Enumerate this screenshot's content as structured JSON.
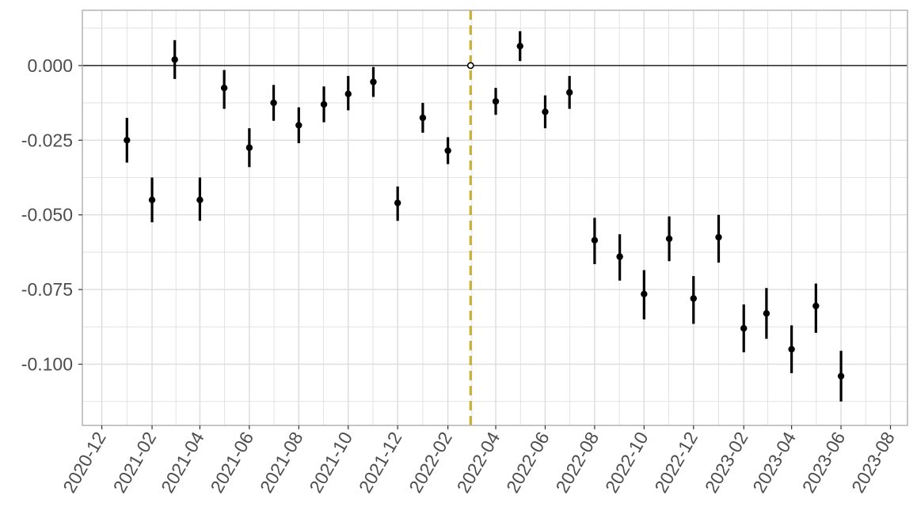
{
  "chart_data": {
    "type": "scatter",
    "title": "",
    "xlabel": "",
    "ylabel": "",
    "x_axis_type": "date",
    "xlim": [
      "2020-11-07",
      "2023-08-22"
    ],
    "ylim": [
      -0.1205,
      0.0185
    ],
    "x_tick_labels": [
      "2020-12",
      "2021-02",
      "2021-04",
      "2021-06",
      "2021-08",
      "2021-10",
      "2021-12",
      "2022-02",
      "2022-04",
      "2022-06",
      "2022-08",
      "2022-10",
      "2022-12",
      "2023-02",
      "2023-04",
      "2023-06",
      "2023-08"
    ],
    "y_ticks": [
      0.0,
      -0.025,
      -0.05,
      -0.075,
      -0.1
    ],
    "y_tick_labels": [
      "0.000",
      "-0.025",
      "-0.050",
      "-0.075",
      "-0.100"
    ],
    "x_label_rotation_deg": -60,
    "grid": true,
    "reference_hline_y": 0.0,
    "reference_vline_x": "2022-03-01",
    "colors": {
      "points": "#000000",
      "vline": "#c9b037",
      "hline": "#000000",
      "grid": "#dcdcdc",
      "panel_border": "#b3b3b3",
      "tick_text": "#4d4d4d"
    },
    "series": [
      {
        "points": [
          {
            "x": "2021-01-01",
            "y": -0.025,
            "lower": -0.0325,
            "upper": -0.0175
          },
          {
            "x": "2021-02-01",
            "y": -0.045,
            "lower": -0.0525,
            "upper": -0.0375
          },
          {
            "x": "2021-03-01",
            "y": 0.002,
            "lower": -0.0045,
            "upper": 0.0085
          },
          {
            "x": "2021-04-01",
            "y": -0.045,
            "lower": -0.052,
            "upper": -0.0375
          },
          {
            "x": "2021-05-01",
            "y": -0.0075,
            "lower": -0.0145,
            "upper": -0.0015
          },
          {
            "x": "2021-06-01",
            "y": -0.0275,
            "lower": -0.034,
            "upper": -0.021
          },
          {
            "x": "2021-07-01",
            "y": -0.0125,
            "lower": -0.0185,
            "upper": -0.0065
          },
          {
            "x": "2021-08-01",
            "y": -0.02,
            "lower": -0.026,
            "upper": -0.014
          },
          {
            "x": "2021-09-01",
            "y": -0.013,
            "lower": -0.019,
            "upper": -0.007
          },
          {
            "x": "2021-10-01",
            "y": -0.0095,
            "lower": -0.015,
            "upper": -0.0035
          },
          {
            "x": "2021-11-01",
            "y": -0.0055,
            "lower": -0.0105,
            "upper": -0.0005
          },
          {
            "x": "2021-12-01",
            "y": -0.046,
            "lower": -0.052,
            "upper": -0.0405
          },
          {
            "x": "2022-01-01",
            "y": -0.0175,
            "lower": -0.0225,
            "upper": -0.0125
          },
          {
            "x": "2022-02-01",
            "y": -0.0285,
            "lower": -0.033,
            "upper": -0.024
          },
          {
            "x": "2022-03-01",
            "y": 0.0,
            "lower": 0.0,
            "upper": 0.0,
            "open": true
          },
          {
            "x": "2022-04-01",
            "y": -0.012,
            "lower": -0.0165,
            "upper": -0.0075
          },
          {
            "x": "2022-05-01",
            "y": 0.0065,
            "lower": 0.0015,
            "upper": 0.0115
          },
          {
            "x": "2022-06-01",
            "y": -0.0155,
            "lower": -0.021,
            "upper": -0.01
          },
          {
            "x": "2022-07-01",
            "y": -0.009,
            "lower": -0.0145,
            "upper": -0.0035
          },
          {
            "x": "2022-08-01",
            "y": -0.0585,
            "lower": -0.0665,
            "upper": -0.051
          },
          {
            "x": "2022-09-01",
            "y": -0.064,
            "lower": -0.072,
            "upper": -0.0565
          },
          {
            "x": "2022-10-01",
            "y": -0.0765,
            "lower": -0.085,
            "upper": -0.0685
          },
          {
            "x": "2022-11-01",
            "y": -0.058,
            "lower": -0.0655,
            "upper": -0.0505
          },
          {
            "x": "2022-12-01",
            "y": -0.078,
            "lower": -0.0865,
            "upper": -0.0705
          },
          {
            "x": "2023-01-01",
            "y": -0.0575,
            "lower": -0.066,
            "upper": -0.05
          },
          {
            "x": "2023-02-01",
            "y": -0.088,
            "lower": -0.096,
            "upper": -0.08
          },
          {
            "x": "2023-03-01",
            "y": -0.083,
            "lower": -0.0915,
            "upper": -0.0745
          },
          {
            "x": "2023-04-01",
            "y": -0.095,
            "lower": -0.103,
            "upper": -0.087
          },
          {
            "x": "2023-05-01",
            "y": -0.0805,
            "lower": -0.0895,
            "upper": -0.073
          },
          {
            "x": "2023-06-01",
            "y": -0.104,
            "lower": -0.1125,
            "upper": -0.0955
          }
        ]
      }
    ]
  }
}
